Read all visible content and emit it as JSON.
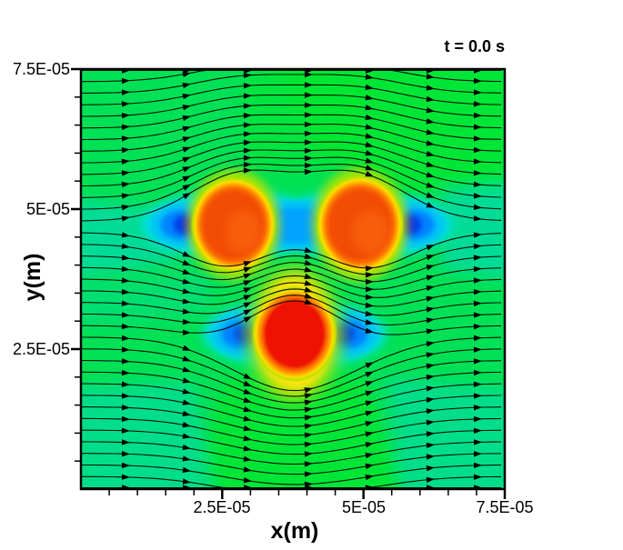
{
  "window": {
    "background": "#ffffff"
  },
  "chart_data": {
    "type": "heatmap",
    "subtype": "cfd-contour-field-with-streamlines",
    "title": "t = 0.0 s",
    "xlabel": "x(m)",
    "ylabel": "y(m)",
    "xlim": [
      0,
      7.5e-05
    ],
    "ylim": [
      0,
      7.5e-05
    ],
    "x_tick_labels": [
      "2.5E-05",
      "5E-05",
      "7.5E-05"
    ],
    "y_tick_labels": [
      "7.5E-05",
      "5E-05",
      "2.5E-05"
    ],
    "x_tick_values": [
      2.5e-05,
      5e-05,
      7.5e-05
    ],
    "y_tick_values": [
      7.5e-05,
      5e-05,
      2.5e-05
    ],
    "minor_ticks_per_major": 5,
    "grid": false,
    "legend": "none",
    "flow": {
      "direction": "left-to-right",
      "streamline_count": 37,
      "style": "black streamlines with solid arrowheads"
    },
    "bodies": [
      {
        "name": "upper-left-cell",
        "center_x_m": 2.7e-05,
        "center_y_m": 4.72e-05,
        "radius_m": 6.3e-06,
        "core_color": "#f24c05",
        "halo_color": "#b7e300"
      },
      {
        "name": "upper-right-cell",
        "center_x_m": 4.94e-05,
        "center_y_m": 4.72e-05,
        "radius_m": 6.5e-06,
        "core_color": "#f24c05",
        "halo_color": "#b7e300"
      },
      {
        "name": "lower-center-cell",
        "center_x_m": 3.78e-05,
        "center_y_m": 2.77e-05,
        "radius_m": 6.3e-06,
        "core_color": "#ee1202",
        "halo_color": "#ffe30a"
      }
    ],
    "colormap_colors": [
      "#141bd8",
      "#0040ee",
      "#0085ff",
      "#00c6f2",
      "#00e0dc",
      "#00dc9c",
      "#00e156",
      "#05e72e",
      "#9ce800",
      "#ffe30a",
      "#ffa800",
      "#f96a00",
      "#f24c05",
      "#ee1202"
    ]
  }
}
